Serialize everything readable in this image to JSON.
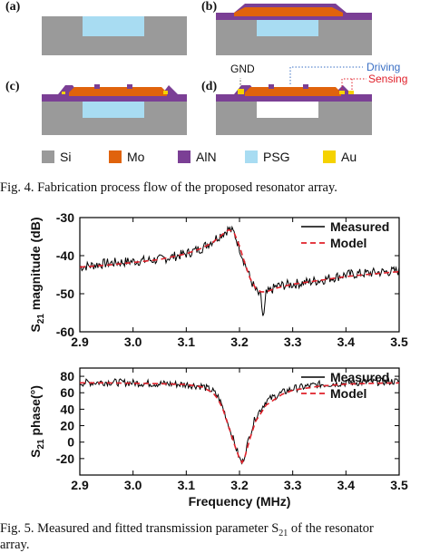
{
  "figure4": {
    "panels": [
      "(a)",
      "(b)",
      "(c)",
      "(d)"
    ],
    "annotations": {
      "gnd": "GND",
      "driving": "Driving",
      "sensing": "Sensing"
    },
    "legend": [
      {
        "label": "Si",
        "color": "#9a9a9a"
      },
      {
        "label": "Mo",
        "color": "#e0630c"
      },
      {
        "label": "AlN",
        "color": "#7b3f95"
      },
      {
        "label": "PSG",
        "color": "#a8dcf2"
      },
      {
        "label": "Au",
        "color": "#f5d200"
      }
    ],
    "caption": "Fig. 4.    Fabrication process flow of the proposed resonator array."
  },
  "figure5": {
    "caption": "Fig. 5.    Measured and fitted transmission parameter S",
    "caption_sub": "21",
    "caption_tail": " of the resonator",
    "caption_line2": "array."
  },
  "chart_data": [
    {
      "type": "line",
      "ylabel": "S21 magnitude (dB)",
      "xlabel": "",
      "xlim": [
        2.9,
        3.5
      ],
      "ylim": [
        -60,
        -30
      ],
      "xticks": [
        "2.9",
        "3.0",
        "3.1",
        "3.2",
        "3.3",
        "3.4",
        "3.5"
      ],
      "yticks": [
        "-30",
        "-40",
        "-50",
        "-60"
      ],
      "legend_position": "top-right",
      "series": [
        {
          "name": "Measured",
          "color": "#000000",
          "style": "solid",
          "x": [
            2.9,
            2.95,
            3.0,
            3.05,
            3.1,
            3.13,
            3.15,
            3.17,
            3.18,
            3.19,
            3.2,
            3.21,
            3.22,
            3.23,
            3.24,
            3.245,
            3.25,
            3.27,
            3.3,
            3.35,
            3.4,
            3.45,
            3.5
          ],
          "y": [
            -43,
            -42,
            -41.5,
            -41,
            -39.5,
            -38,
            -36,
            -34,
            -33,
            -34,
            -38,
            -42,
            -46,
            -49,
            -51,
            -57,
            -50,
            -48,
            -47.5,
            -46.5,
            -45,
            -44.5,
            -44
          ]
        },
        {
          "name": "Model",
          "color": "#e0202a",
          "style": "dashed",
          "x": [
            2.9,
            2.95,
            3.0,
            3.05,
            3.1,
            3.13,
            3.15,
            3.17,
            3.18,
            3.19,
            3.2,
            3.21,
            3.22,
            3.23,
            3.24,
            3.25,
            3.27,
            3.3,
            3.35,
            3.4,
            3.45,
            3.5
          ],
          "y": [
            -43,
            -42.5,
            -41.8,
            -41,
            -39.5,
            -38,
            -36.5,
            -34.2,
            -33.2,
            -34,
            -37.5,
            -42,
            -46,
            -48.5,
            -49.5,
            -49.5,
            -48.5,
            -47.5,
            -46.5,
            -45.5,
            -44.8,
            -44.2
          ]
        }
      ]
    },
    {
      "type": "line",
      "ylabel": "S21 phase(°)",
      "xlabel": "Frequency (MHz)",
      "xlim": [
        2.9,
        3.5
      ],
      "ylim": [
        -40,
        90
      ],
      "xticks": [
        "2.9",
        "3.0",
        "3.1",
        "3.2",
        "3.3",
        "3.4",
        "3.5"
      ],
      "yticks": [
        "80",
        "60",
        "40",
        "20",
        "0",
        "-20"
      ],
      "legend_position": "top-right",
      "series": [
        {
          "name": "Measured",
          "color": "#000000",
          "style": "solid",
          "x": [
            2.9,
            2.95,
            3.0,
            3.05,
            3.1,
            3.13,
            3.15,
            3.16,
            3.17,
            3.18,
            3.19,
            3.2,
            3.205,
            3.21,
            3.22,
            3.23,
            3.25,
            3.28,
            3.3,
            3.35,
            3.4,
            3.45,
            3.5
          ],
          "y": [
            72,
            73,
            72,
            71,
            70,
            68,
            62,
            55,
            40,
            20,
            0,
            -20,
            -26,
            -15,
            10,
            30,
            50,
            60,
            65,
            70,
            72,
            73,
            74
          ]
        },
        {
          "name": "Model",
          "color": "#e0202a",
          "style": "dashed",
          "x": [
            2.9,
            2.95,
            3.0,
            3.05,
            3.1,
            3.13,
            3.15,
            3.16,
            3.17,
            3.18,
            3.19,
            3.2,
            3.205,
            3.21,
            3.22,
            3.23,
            3.25,
            3.28,
            3.3,
            3.35,
            3.4,
            3.45,
            3.5
          ],
          "y": [
            72,
            72,
            71.5,
            71,
            70,
            67,
            60,
            52,
            38,
            18,
            -2,
            -20,
            -25,
            -18,
            5,
            25,
            45,
            58,
            63,
            68,
            70.5,
            71.5,
            72
          ]
        }
      ]
    }
  ]
}
